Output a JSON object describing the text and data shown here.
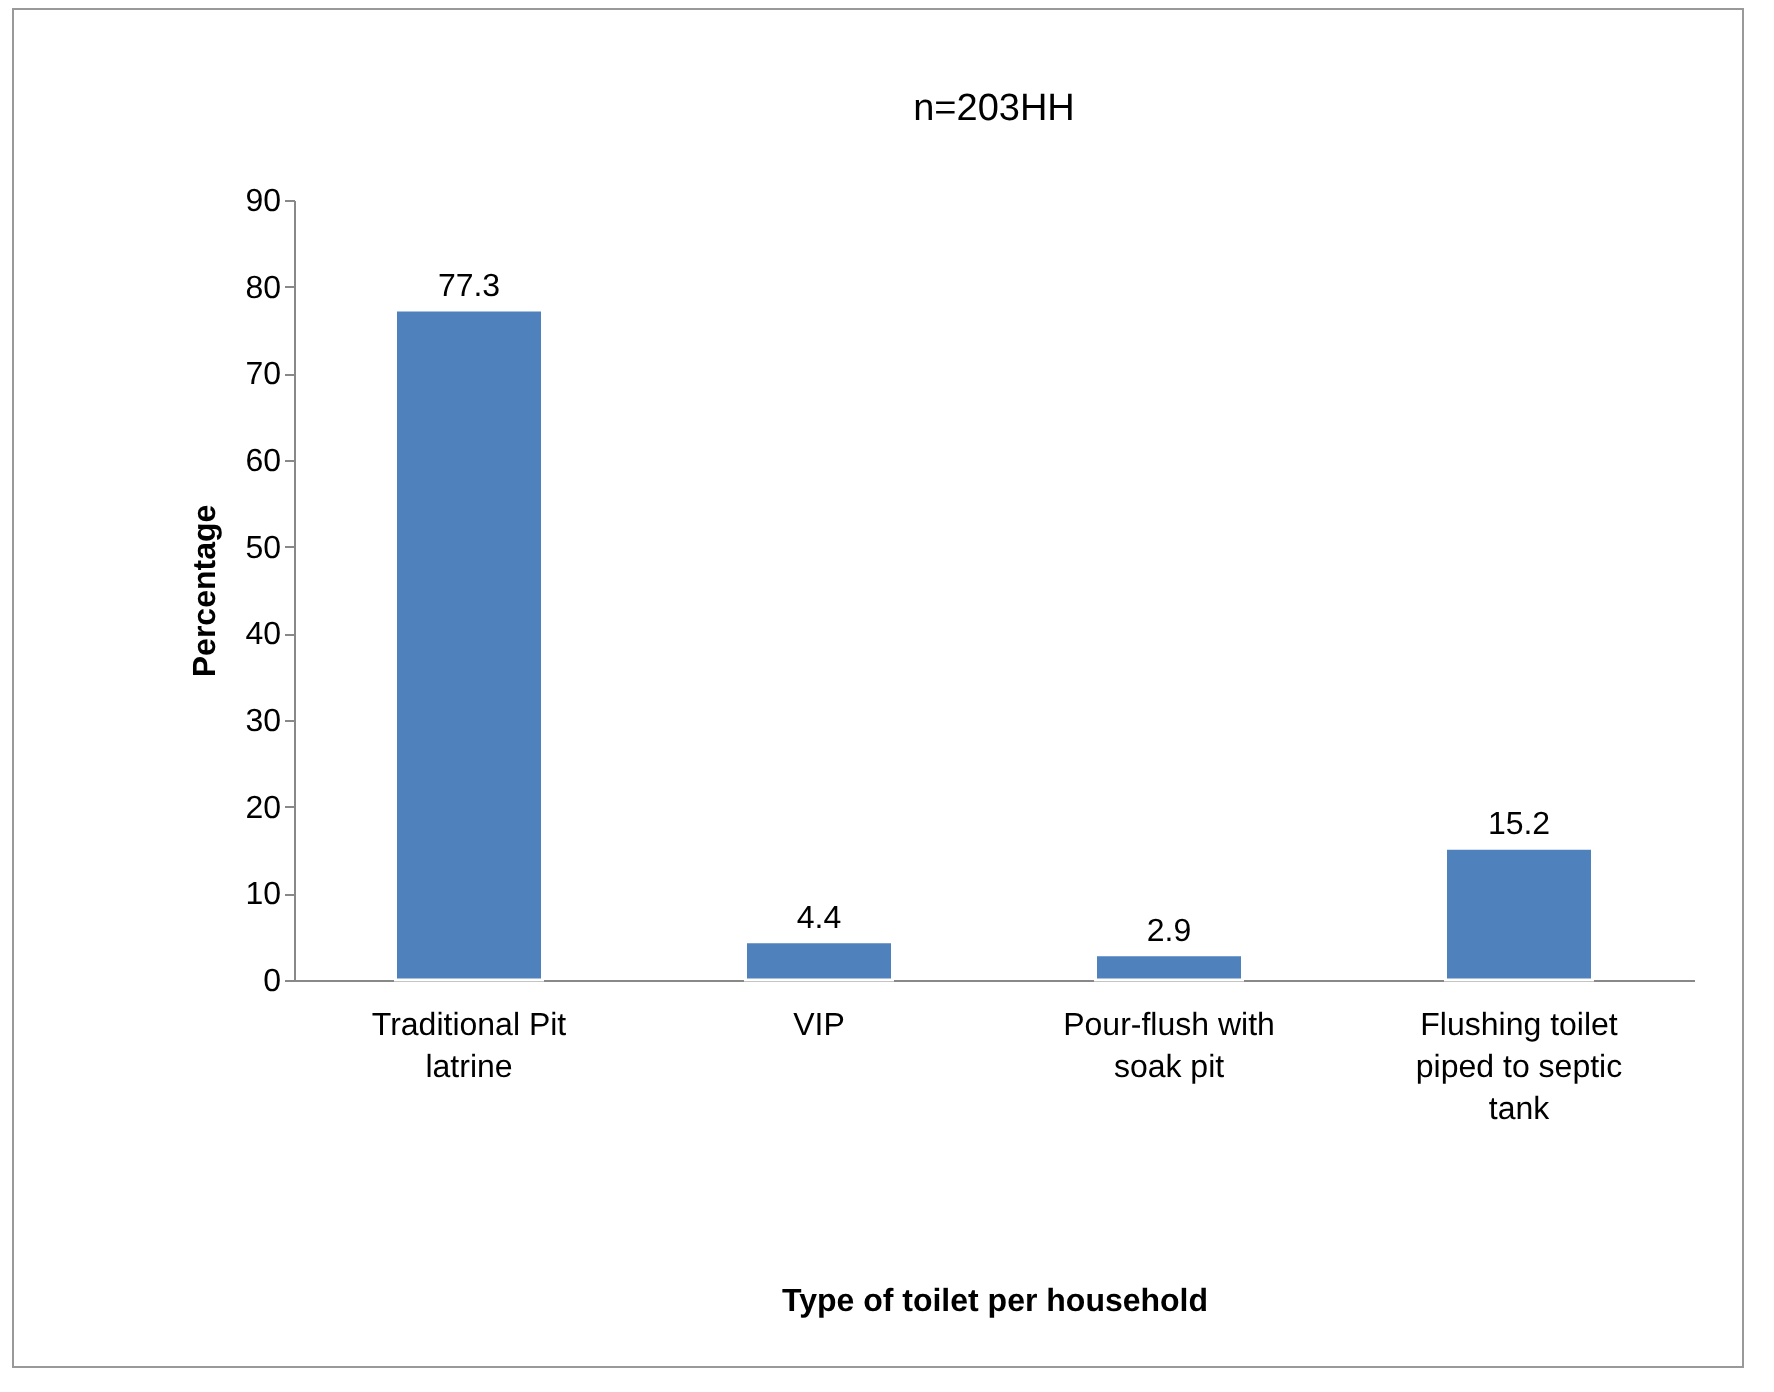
{
  "chart_data": {
    "type": "bar",
    "title": "n=203HH",
    "xlabel": "Type of toilet per household",
    "ylabel": "Percentage",
    "categories": [
      "Traditional Pit latrine",
      "VIP",
      "Pour-flush with soak pit",
      "Flushing toilet piped to septic tank"
    ],
    "values": [
      77.3,
      4.4,
      2.9,
      15.2
    ],
    "color": "#4f81bd",
    "ylim": [
      0,
      90
    ],
    "yticks": [
      0,
      10,
      20,
      30,
      40,
      50,
      60,
      70,
      80,
      90
    ],
    "data_labels": true
  }
}
